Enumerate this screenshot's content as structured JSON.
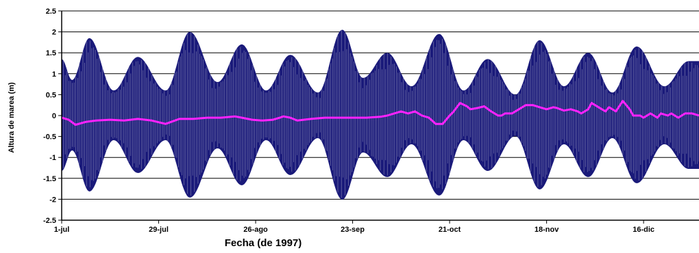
{
  "chart_data": {
    "type": "line",
    "title": "",
    "xlabel": "Fecha (de 1997)",
    "ylabel": "Altura de marea (m)",
    "x_ticks": [
      "1-jul",
      "29-jul",
      "26-ago",
      "23-sep",
      "21-oct",
      "18-nov",
      "16-dic"
    ],
    "x_tick_days": [
      0,
      28,
      56,
      84,
      112,
      140,
      168
    ],
    "x_range_days": [
      0,
      184
    ],
    "y_ticks": [
      "2.5",
      "2",
      "1.5",
      "1",
      "0.5",
      "0",
      "-0.5",
      "-1",
      "-1.5",
      "-2",
      "-2.5"
    ],
    "ylim": [
      -2.5,
      2.5
    ],
    "grid": "horizontal",
    "legend": "none",
    "series": [
      {
        "kind": "envelope",
        "color": "#1a1a7a",
        "stroke": "#c8c8d8",
        "peak_days": [
          0,
          8,
          22,
          37,
          52,
          66,
          81,
          94,
          109,
          123,
          138,
          152,
          166,
          181
        ],
        "peak_amplitude": [
          1.35,
          1.85,
          1.4,
          2.0,
          1.7,
          1.45,
          2.05,
          1.5,
          1.95,
          1.35,
          1.8,
          1.5,
          1.65,
          1.3
        ],
        "trough_days": [
          3,
          15,
          30,
          45,
          59,
          74,
          87,
          101,
          116,
          131,
          145,
          159,
          174
        ],
        "trough_amplitude": [
          0.85,
          0.6,
          0.6,
          0.8,
          0.6,
          0.55,
          0.9,
          0.7,
          0.6,
          0.5,
          0.7,
          0.55,
          0.7
        ]
      },
      {
        "kind": "line",
        "color": "#ff22ff",
        "days": [
          0,
          2,
          4,
          7,
          10,
          14,
          18,
          22,
          26,
          30,
          34,
          38,
          42,
          46,
          50,
          52,
          55,
          58,
          61,
          63,
          64,
          66,
          68,
          72,
          76,
          80,
          84,
          88,
          92,
          94,
          96,
          98,
          100,
          102,
          104,
          106,
          108,
          110,
          112,
          113,
          115,
          117,
          118,
          120,
          122,
          124,
          126,
          127,
          128,
          130,
          132,
          134,
          136,
          138,
          140,
          142,
          143,
          145,
          147,
          149,
          150,
          152,
          153,
          155,
          157,
          158,
          160,
          162,
          164,
          165,
          167,
          168,
          170,
          172,
          173,
          175,
          176,
          178,
          180,
          182,
          184
        ],
        "values": [
          -0.05,
          -0.1,
          -0.22,
          -0.15,
          -0.12,
          -0.1,
          -0.12,
          -0.08,
          -0.12,
          -0.2,
          -0.08,
          -0.08,
          -0.05,
          -0.05,
          -0.02,
          -0.05,
          -0.1,
          -0.12,
          -0.1,
          -0.05,
          -0.02,
          -0.05,
          -0.12,
          -0.08,
          -0.05,
          -0.05,
          -0.05,
          -0.05,
          -0.03,
          0.0,
          0.05,
          0.1,
          0.05,
          0.1,
          0.0,
          -0.05,
          -0.2,
          -0.2,
          0.0,
          0.08,
          0.3,
          0.22,
          0.15,
          0.18,
          0.22,
          0.1,
          0.0,
          0.0,
          0.05,
          0.05,
          0.15,
          0.25,
          0.25,
          0.2,
          0.15,
          0.2,
          0.18,
          0.12,
          0.15,
          0.1,
          0.05,
          0.15,
          0.3,
          0.2,
          0.1,
          0.2,
          0.1,
          0.35,
          0.15,
          0.0,
          0.0,
          -0.05,
          0.05,
          -0.05,
          0.05,
          0.0,
          0.05,
          -0.05,
          0.05,
          0.05,
          0.0
        ]
      }
    ]
  }
}
